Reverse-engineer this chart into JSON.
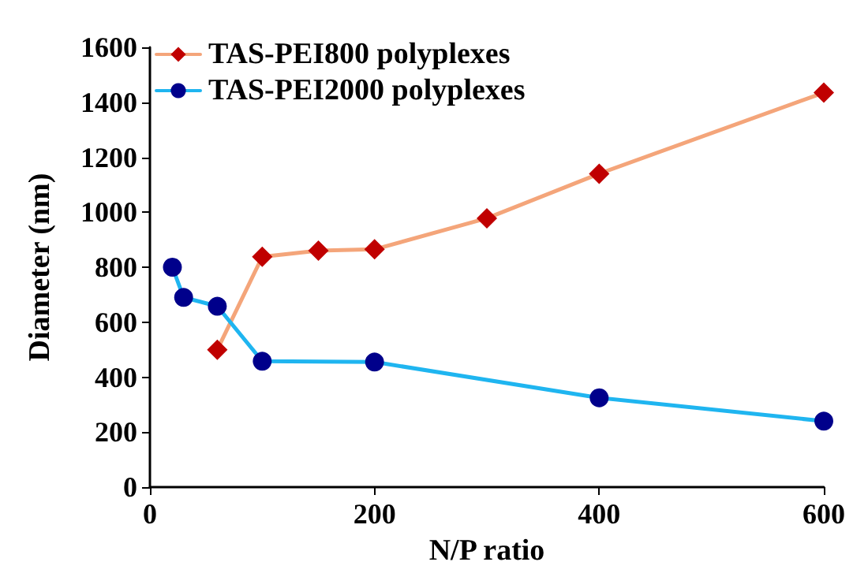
{
  "chart_data": {
    "type": "line",
    "xlabel": "N/P ratio",
    "ylabel": "Diameter (nm)",
    "xlim": [
      0,
      600
    ],
    "xticks": [
      0,
      200,
      400,
      600
    ],
    "ylim": [
      0,
      1600
    ],
    "yticks": [
      0,
      200,
      400,
      600,
      800,
      1000,
      1200,
      1400,
      1600
    ],
    "grid": false,
    "legend": "top left",
    "line_style": "solid",
    "series": [
      {
        "name": "TAS-PEI800 polyplexes",
        "color": "#f4a57a",
        "marker": "diamond",
        "colors": [
          "#c00000",
          "#c00000",
          "#c00000",
          "#c00000",
          "#c00000",
          "#c00000",
          "#c00000"
        ],
        "x": [
          60,
          100,
          150,
          200,
          300,
          400,
          600
        ],
        "values": [
          500,
          838,
          860,
          865,
          978,
          1140,
          1435
        ]
      },
      {
        "name": "TAS-PEI2000 polyplexes",
        "color": "#1fb5f0",
        "marker": "circle",
        "colors": [
          "#00008b",
          "#00008b",
          "#00008b",
          "#00008b",
          "#00008b",
          "#00008b",
          "#00008b"
        ],
        "x": [
          20,
          30,
          60,
          100,
          200,
          400,
          600
        ],
        "values": [
          800,
          690,
          658,
          458,
          455,
          325,
          240
        ]
      }
    ]
  }
}
